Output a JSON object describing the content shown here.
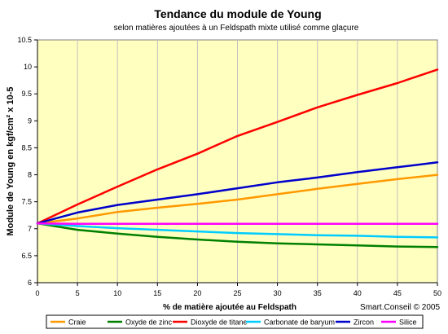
{
  "chart_data": {
    "type": "line",
    "title": "Tendance du module de Young",
    "subtitle": "selon matières ajoutées à un Feldspath mixte utilisé comme glaçure",
    "xlabel": "% de matière ajoutée au Feldspath",
    "ylabel": "Module de Young en kgf/cm² x 10-5",
    "credit": "Smart.Conseil © 2005",
    "xlim": [
      0,
      50
    ],
    "ylim": [
      6,
      10.5
    ],
    "x_ticks": [
      "0",
      "5",
      "10",
      "15",
      "20",
      "25",
      "30",
      "35",
      "40",
      "45",
      "50"
    ],
    "y_ticks": [
      "6",
      "6.5",
      "7",
      "7.5",
      "8",
      "8.5",
      "9",
      "9.5",
      "10",
      "10.5"
    ],
    "grid": "vertical",
    "legend": "bottom",
    "plot_background": "#ffffc0",
    "x": [
      0,
      5,
      10,
      15,
      20,
      25,
      30,
      35,
      40,
      45,
      50
    ],
    "series": [
      {
        "name": "Craie",
        "color": "#ff9900",
        "values": [
          7.1,
          7.19,
          7.31,
          7.39,
          7.46,
          7.54,
          7.64,
          7.74,
          7.83,
          7.92,
          8.0
        ]
      },
      {
        "name": "Oxyde de zinc",
        "color": "#008000",
        "values": [
          7.1,
          6.98,
          6.91,
          6.85,
          6.8,
          6.76,
          6.73,
          6.71,
          6.69,
          6.67,
          6.66
        ]
      },
      {
        "name": "Dioxyde de titane",
        "color": "#ff0000",
        "values": [
          7.1,
          7.45,
          7.78,
          8.1,
          8.39,
          8.72,
          8.98,
          9.25,
          9.48,
          9.7,
          9.95
        ]
      },
      {
        "name": "Carbonate de baryum",
        "color": "#00ccff",
        "values": [
          7.1,
          7.05,
          7.01,
          6.98,
          6.95,
          6.92,
          6.9,
          6.88,
          6.87,
          6.85,
          6.84
        ]
      },
      {
        "name": "Zircon",
        "color": "#0000cc",
        "values": [
          7.1,
          7.3,
          7.44,
          7.54,
          7.64,
          7.75,
          7.86,
          7.95,
          8.05,
          8.14,
          8.23
        ]
      },
      {
        "name": "Silice",
        "color": "#ff00ff",
        "values": [
          7.1,
          7.09,
          7.09,
          7.09,
          7.09,
          7.09,
          7.09,
          7.09,
          7.09,
          7.09,
          7.09
        ]
      }
    ]
  }
}
